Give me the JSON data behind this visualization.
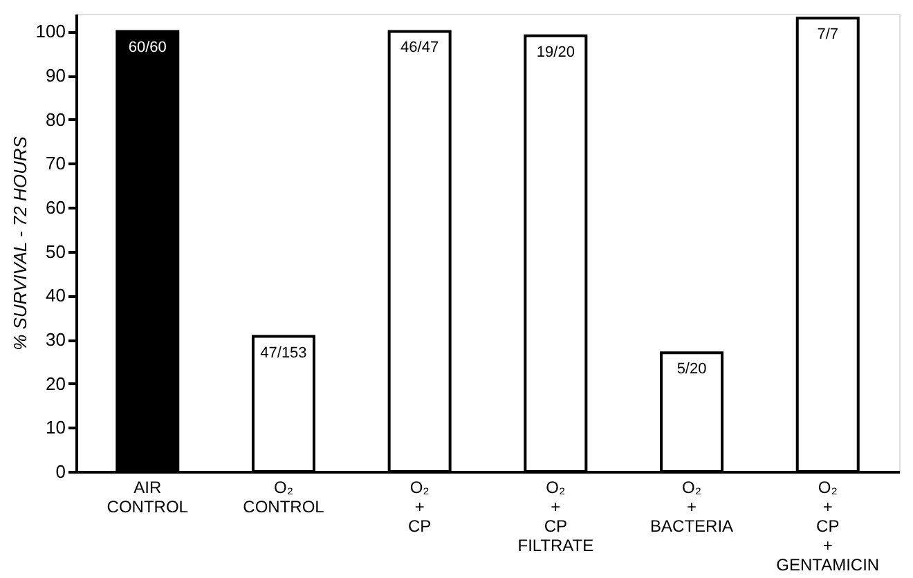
{
  "chart_data": {
    "type": "bar",
    "ylabel": "% SURVIVAL - 72 HOURS",
    "categories": [
      "AIR\nCONTROL",
      "O₂\nCONTROL",
      "O₂\n+\nCP",
      "O₂\n+\nCP\nFILTRATE",
      "O₂\n+\nBACTERIA",
      "O₂\n+\nCP\n+\nGENTAMICIN"
    ],
    "values": [
      100,
      30.7,
      100,
      99,
      27,
      103
    ],
    "colors": [
      "#000000",
      "#ffffff",
      "#ffffff",
      "#ffffff",
      "#ffffff",
      "#ffffff"
    ],
    "value_labels": [
      "60/60",
      "47/153",
      "46/47",
      "19/20",
      "5/20",
      "7/7"
    ],
    "ylim": [
      0,
      104
    ],
    "yticks": [
      0,
      10,
      20,
      30,
      40,
      50,
      60,
      70,
      80,
      90,
      100
    ],
    "grid": false
  }
}
